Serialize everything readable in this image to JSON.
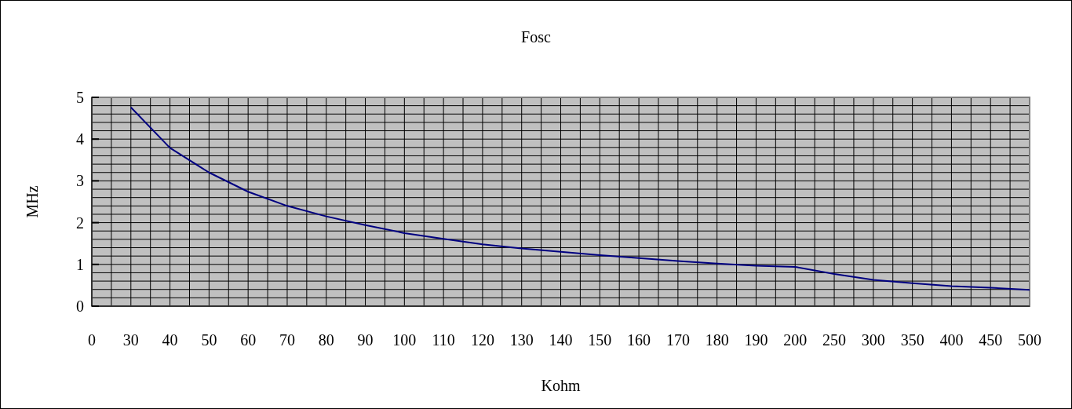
{
  "chart_data": {
    "type": "line",
    "title": "Fosc",
    "xlabel": "Kohm",
    "ylabel": "MHz",
    "categories": [
      "0",
      "30",
      "40",
      "50",
      "60",
      "70",
      "80",
      "90",
      "100",
      "110",
      "120",
      "130",
      "140",
      "150",
      "160",
      "170",
      "180",
      "190",
      "200",
      "250",
      "300",
      "350",
      "400",
      "450",
      "500"
    ],
    "series": [
      {
        "color": "#000080",
        "values": [
          null,
          4.76,
          3.79,
          3.2,
          2.74,
          2.4,
          2.15,
          1.94,
          1.75,
          1.61,
          1.48,
          1.38,
          1.3,
          1.22,
          1.15,
          1.08,
          1.02,
          0.97,
          0.94,
          0.77,
          0.63,
          0.55,
          0.48,
          0.44,
          0.39
        ]
      }
    ],
    "ylim": [
      0,
      5
    ],
    "yticks": [
      0,
      1,
      2,
      3,
      4,
      5
    ],
    "grid": true,
    "marker": "none",
    "line_style": "solid"
  }
}
